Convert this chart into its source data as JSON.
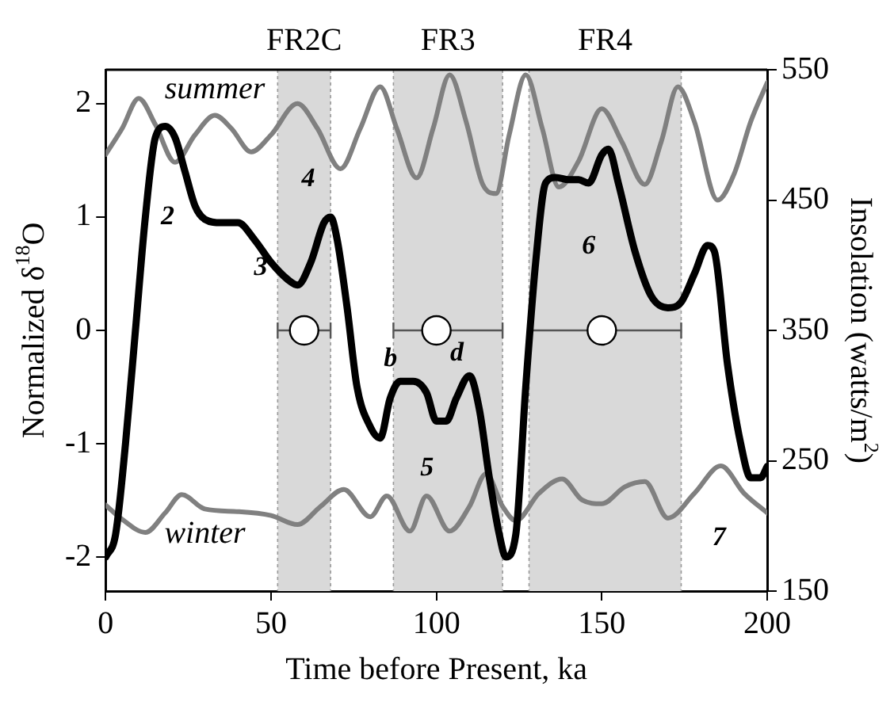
{
  "chart_data": {
    "type": "line",
    "xlabel": "Time before Present, ka",
    "ylabel": "Normalized δ$^{18}$O",
    "y2label": "Insolation (watts/m$^{2}$)",
    "xlim": [
      0,
      200
    ],
    "xticks": [
      0,
      50,
      100,
      150,
      200
    ],
    "ylim": [
      -2.3,
      2.3
    ],
    "yticks": [
      -2,
      -1,
      0,
      1,
      2
    ],
    "y2lim": [
      150,
      550
    ],
    "y2ticks": [
      150,
      250,
      350,
      450,
      550
    ],
    "grid": false,
    "legend": false,
    "bands": [
      {
        "axis": "x",
        "from": 52,
        "to": 68,
        "label": "FR2C",
        "color": "#d9d9d9"
      },
      {
        "axis": "x",
        "from": 87,
        "to": 120,
        "label": "FR3",
        "color": "#d9d9d9"
      },
      {
        "axis": "x",
        "from": 128,
        "to": 174,
        "label": "FR4",
        "color": "#d9d9d9"
      }
    ],
    "series": [
      {
        "color": "#000000",
        "x": [
          0,
          3,
          6,
          9,
          12,
          15,
          18,
          21,
          24,
          27,
          30,
          35,
          40,
          45,
          50,
          55,
          58,
          62,
          66,
          68,
          70,
          73,
          76,
          80,
          83,
          86,
          89,
          93,
          97,
          100,
          103,
          106,
          110,
          113,
          116,
          119,
          121,
          124,
          127,
          130,
          133,
          136,
          140,
          143,
          146,
          150,
          152,
          155,
          160,
          165,
          170,
          174,
          178,
          182,
          184,
          188,
          192,
          195,
          198,
          200
        ],
        "values": [
          -2.0,
          -1.8,
          -1.0,
          0,
          1.0,
          1.7,
          1.8,
          1.7,
          1.4,
          1.1,
          0.98,
          0.95,
          0.95,
          0.8,
          0.6,
          0.45,
          0.4,
          0.6,
          0.95,
          1.0,
          0.8,
          0.2,
          -0.5,
          -0.85,
          -0.95,
          -0.6,
          -0.45,
          -0.45,
          -0.55,
          -0.8,
          -0.8,
          -0.6,
          -0.4,
          -0.7,
          -1.3,
          -1.8,
          -2.0,
          -1.8,
          -0.5,
          0.6,
          1.3,
          1.35,
          1.33,
          1.33,
          1.3,
          1.55,
          1.6,
          1.3,
          0.7,
          0.3,
          0.2,
          0.25,
          0.5,
          0.75,
          0.7,
          -0.3,
          -1.0,
          -1.3,
          -1.3,
          -1.2
        ]
      },
      {
        "name": "summer",
        "axis": "y2",
        "color": "#808080",
        "x": [
          0,
          5,
          10,
          15,
          21,
          27,
          33,
          38,
          44,
          50,
          58,
          64,
          71,
          77,
          83,
          88,
          94,
          99,
          104,
          109,
          114,
          118,
          122,
          127,
          132,
          137,
          143,
          150,
          156,
          163,
          168,
          173,
          178,
          185,
          190,
          195,
          200
        ],
        "values": [
          485,
          505,
          528,
          508,
          479,
          500,
          515,
          505,
          487,
          500,
          524,
          505,
          474,
          505,
          537,
          505,
          467,
          505,
          546,
          510,
          462,
          455,
          500,
          546,
          505,
          460,
          480,
          520,
          495,
          462,
          495,
          537,
          510,
          450,
          470,
          510,
          540
        ]
      },
      {
        "name": "winter",
        "axis": "y2",
        "color": "#808080",
        "x": [
          0,
          5,
          12,
          18,
          23,
          30,
          40,
          50,
          58,
          65,
          72,
          80,
          85,
          92,
          97,
          104,
          110,
          115,
          120,
          124,
          131,
          138,
          144,
          150,
          157,
          163,
          170,
          178,
          186,
          193,
          200
        ],
        "values": [
          216,
          205,
          195,
          210,
          224,
          213,
          211,
          208,
          201,
          215,
          228,
          207,
          223,
          196,
          223,
          196,
          215,
          240,
          215,
          204,
          225,
          236,
          220,
          217,
          230,
          234,
          206,
          225,
          246,
          225,
          210
        ]
      },
      {
        "type": "scatter",
        "marker": "circle",
        "color": "#ffffff",
        "x": [
          60,
          100,
          150
        ],
        "values": [
          0,
          0,
          0
        ],
        "xerrors": [
          [
            52,
            68
          ],
          [
            87,
            120
          ],
          [
            128,
            174
          ]
        ]
      }
    ],
    "annotations": [
      {
        "text": "2",
        "x": 12,
        "y": 1.0
      },
      {
        "text": "3",
        "x": 45,
        "y": 0.8
      },
      {
        "text": "4",
        "x": 68,
        "y": 1.0
      },
      {
        "text": "b",
        "x": 89,
        "y": -0.45
      },
      {
        "text": "d",
        "x": 110,
        "y": -0.4
      },
      {
        "text": "5",
        "x": 100,
        "y": -0.8
      },
      {
        "text": "6",
        "x": 146,
        "y": 1.3
      },
      {
        "text": "7",
        "x": 195,
        "y": -1.3
      }
    ]
  }
}
